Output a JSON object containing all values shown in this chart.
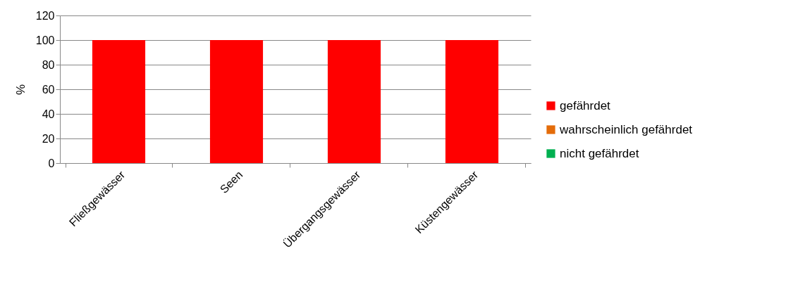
{
  "chart_data": {
    "type": "bar",
    "stacked": true,
    "ylabel": "%",
    "categories": [
      "Fließgewässer",
      "Seen",
      "Übergangsgewässer",
      "Küstengewässer"
    ],
    "series": [
      {
        "name": "gefährdet",
        "color": "#ff0000",
        "values": [
          100,
          100,
          100,
          100
        ]
      },
      {
        "name": "wahrscheinlich gefährdet",
        "color": "#e46c0a",
        "values": [
          0,
          0,
          0,
          0
        ]
      },
      {
        "name": "nicht gefährdet",
        "color": "#00b050",
        "values": [
          0,
          0,
          0,
          0
        ]
      }
    ],
    "ylim": [
      0,
      120
    ],
    "yticks": [
      0,
      20,
      40,
      60,
      80,
      100,
      120
    ],
    "grid": "y",
    "legend": "right"
  }
}
